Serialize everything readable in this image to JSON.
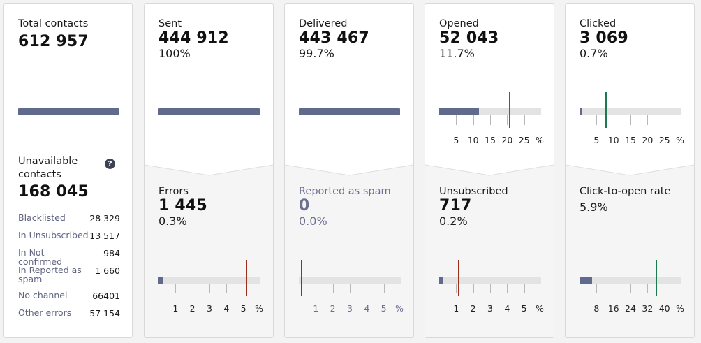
{
  "total": {
    "title": "Total contacts",
    "value": "612 957",
    "unavailable_title": "Unavailable contacts",
    "unavailable_value": "168 045",
    "breakdown": [
      {
        "label": "Blacklisted",
        "value": "28 329"
      },
      {
        "label": "In Unsubscribed",
        "value": "13 517"
      },
      {
        "label": "In Not confirmed",
        "value": "984"
      },
      {
        "label": "In Reported as spam",
        "value": "1 660"
      },
      {
        "label": "No channel",
        "value": "66401"
      },
      {
        "label": "Other errors",
        "value": "57 154"
      }
    ]
  },
  "cards": [
    {
      "top": {
        "title": "Sent",
        "value": "444 912",
        "pct": "100%"
      },
      "bottom": {
        "title": "Errors",
        "value": "1 445",
        "pct": "0.3%",
        "muted": false,
        "gauge": {
          "ticks": [
            "1",
            "2",
            "3",
            "4",
            "5"
          ],
          "unit": "%",
          "max": 6,
          "fill": 0.3,
          "marker": 5,
          "marker_color": "#9c2f1c"
        }
      }
    },
    {
      "top": {
        "title": "Delivered",
        "value": "443 467",
        "pct": "99.7%"
      },
      "bottom": {
        "title": "Reported as spam",
        "value": "0",
        "pct": "0.0%",
        "muted": true,
        "gauge": {
          "ticks": [
            "1",
            "2",
            "3",
            "4",
            "5"
          ],
          "unit": "%",
          "max": 6,
          "fill": 0,
          "marker": 0,
          "marker_color": "#9c2f1c"
        }
      }
    },
    {
      "top": {
        "title": "Opened",
        "value": "52 043",
        "pct": "11.7%",
        "gauge": {
          "ticks": [
            "5",
            "10",
            "15",
            "20",
            "25"
          ],
          "unit": "%",
          "max": 30,
          "fill": 11.7,
          "marker": 20,
          "marker_color": "#1b7a50"
        }
      },
      "bottom": {
        "title": "Unsubscribed",
        "value": "717",
        "pct": "0.2%",
        "muted": false,
        "gauge": {
          "ticks": [
            "1",
            "2",
            "3",
            "4",
            "5"
          ],
          "unit": "%",
          "max": 6,
          "fill": 0.2,
          "marker": 1,
          "marker_color": "#9c2f1c"
        }
      }
    },
    {
      "top": {
        "title": "Clicked",
        "value": "3 069",
        "pct": "0.7%",
        "gauge": {
          "ticks": [
            "5",
            "10",
            "15",
            "20",
            "25"
          ],
          "unit": "%",
          "max": 30,
          "fill": 0.7,
          "marker": 7,
          "marker_color": "#1b7a50"
        }
      },
      "bottom": {
        "title": "Click-to-open rate",
        "value": "",
        "pct": "5.9%",
        "muted": false,
        "gauge": {
          "ticks": [
            "8",
            "16",
            "24",
            "32",
            "40"
          ],
          "unit": "%",
          "max": 48,
          "fill": 5.9,
          "marker": 35,
          "marker_color": "#1b7a50"
        }
      }
    }
  ],
  "colors": {
    "bar": "#5f6a8c",
    "track": "#e3e3e3",
    "good": "#1b7a50",
    "bad": "#9c2f1c",
    "muted_text": "#6b7090"
  },
  "icons": {
    "help": "question-circle-icon"
  }
}
